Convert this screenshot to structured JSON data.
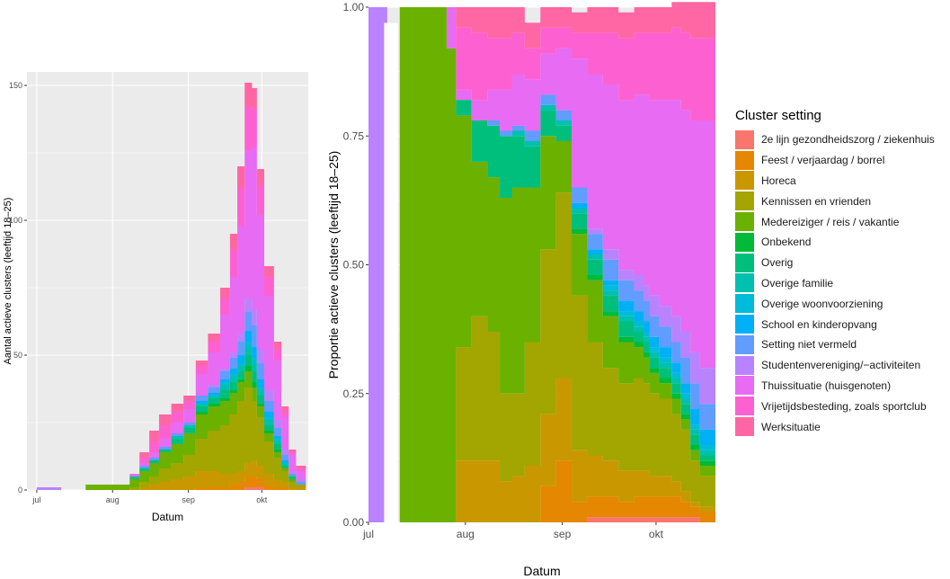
{
  "chart_data": [
    {
      "type": "area",
      "stacked": true,
      "xlabel": "Datum",
      "ylabel": "Aantal actieve clusters (leeftijd 18–25)",
      "x_ticks": [
        "jul",
        "aug",
        "sep",
        "okt"
      ],
      "y_ticks": [
        "0",
        "50",
        "100",
        "150"
      ],
      "ylim": [
        0,
        155
      ],
      "x_days": [
        0,
        10,
        14,
        20,
        25,
        33,
        38,
        42,
        46,
        50,
        55,
        60,
        65,
        70,
        75,
        79,
        82,
        85,
        88,
        90,
        93,
        97,
        100,
        103,
        106
      ],
      "series": [
        {
          "name": "Werksituatie",
          "values": [
            0,
            0,
            0,
            0,
            0,
            0,
            0,
            2,
            4,
            4,
            3,
            2,
            2,
            3,
            4,
            6,
            8,
            9,
            8,
            6,
            4,
            3,
            2,
            1,
            1
          ]
        },
        {
          "name": "Vrijetijdsbesteding, zoals sportclub",
          "values": [
            0,
            0,
            0,
            0,
            0,
            0,
            0,
            2,
            4,
            5,
            4,
            3,
            3,
            4,
            6,
            10,
            14,
            16,
            14,
            11,
            7,
            4,
            2,
            1,
            1
          ]
        },
        {
          "name": "Thuissituatie (huisgenoten)",
          "values": [
            0,
            0,
            0,
            0,
            0,
            0,
            1,
            1,
            2,
            3,
            4,
            5,
            8,
            12,
            20,
            28,
            40,
            55,
            60,
            50,
            35,
            22,
            12,
            6,
            3
          ]
        },
        {
          "name": "Studentenvereniging/−activiteiten",
          "values": [
            1,
            0,
            0,
            0,
            0,
            0,
            0,
            0,
            0,
            0,
            0,
            0,
            0,
            1,
            1,
            2,
            3,
            5,
            6,
            5,
            4,
            3,
            2,
            1,
            1
          ]
        },
        {
          "name": "Setting niet vermeld",
          "values": [
            0,
            0,
            0,
            0,
            0,
            0,
            0,
            1,
            1,
            1,
            1,
            1,
            2,
            2,
            3,
            4,
            5,
            7,
            8,
            6,
            4,
            3,
            2,
            1,
            1
          ]
        },
        {
          "name": "School en kinderopvang",
          "values": [
            0,
            0,
            0,
            0,
            0,
            0,
            0,
            0,
            0,
            0,
            0,
            0,
            1,
            1,
            1,
            2,
            3,
            4,
            4,
            3,
            2,
            1,
            1,
            0,
            0
          ]
        },
        {
          "name": "Overige woonvoorziening",
          "values": [
            0,
            0,
            0,
            0,
            0,
            0,
            0,
            0,
            0,
            0,
            0,
            0,
            0,
            0,
            1,
            1,
            1,
            2,
            2,
            1,
            1,
            1,
            0,
            0,
            0
          ]
        },
        {
          "name": "Overige familie",
          "values": [
            0,
            0,
            0,
            0,
            0,
            0,
            0,
            0,
            0,
            0,
            1,
            1,
            1,
            1,
            2,
            2,
            2,
            3,
            3,
            2,
            2,
            1,
            1,
            0,
            0
          ]
        },
        {
          "name": "Overig",
          "values": [
            0,
            0,
            0,
            0,
            0,
            0,
            1,
            1,
            1,
            1,
            2,
            2,
            2,
            2,
            3,
            3,
            3,
            4,
            4,
            3,
            2,
            2,
            1,
            1,
            0
          ]
        },
        {
          "name": "Onbekend",
          "values": [
            0,
            0,
            0,
            0,
            0,
            0,
            0,
            0,
            0,
            0,
            0,
            0,
            1,
            1,
            1,
            1,
            1,
            2,
            2,
            1,
            1,
            1,
            0,
            0,
            0
          ]
        },
        {
          "name": "Medereiziger / reis / vakantie",
          "values": [
            0,
            0,
            0,
            2,
            2,
            2,
            3,
            4,
            5,
            6,
            7,
            8,
            9,
            9,
            9,
            8,
            7,
            6,
            5,
            4,
            3,
            2,
            1,
            1,
            0
          ]
        },
        {
          "name": "Kennissen en vrienden",
          "values": [
            0,
            0,
            0,
            0,
            0,
            0,
            1,
            2,
            3,
            5,
            6,
            8,
            12,
            15,
            18,
            22,
            26,
            28,
            22,
            18,
            12,
            8,
            4,
            2,
            1
          ]
        },
        {
          "name": "Horeca",
          "values": [
            0,
            0,
            0,
            0,
            0,
            0,
            0,
            1,
            2,
            3,
            4,
            5,
            6,
            6,
            5,
            4,
            4,
            5,
            6,
            5,
            4,
            3,
            2,
            1,
            1
          ]
        },
        {
          "name": "Feest / verjaardag / borrel",
          "values": [
            0,
            0,
            0,
            0,
            0,
            0,
            0,
            0,
            0,
            0,
            0,
            0,
            1,
            1,
            1,
            2,
            3,
            4,
            4,
            3,
            2,
            1,
            1,
            0,
            0
          ]
        },
        {
          "name": "2e lijn gezondheidszorg / ziekenhuis",
          "values": [
            0,
            0,
            0,
            0,
            0,
            0,
            0,
            0,
            0,
            0,
            0,
            0,
            0,
            0,
            0,
            0,
            0,
            1,
            1,
            1,
            0,
            0,
            0,
            0,
            0
          ]
        }
      ]
    },
    {
      "type": "area",
      "stacked": true,
      "xlabel": "Datum",
      "ylabel": "Proportie actieve clusters (leeftijd 18–25)",
      "x_ticks": [
        "jul",
        "aug",
        "sep",
        "okt"
      ],
      "y_ticks": [
        "0.00",
        "0.25",
        "0.50",
        "0.75",
        "1.00"
      ],
      "ylim": [
        0,
        1
      ],
      "x_days": [
        0,
        5,
        6,
        10,
        14,
        20,
        25,
        28,
        33,
        38,
        42,
        46,
        50,
        55,
        60,
        65,
        70,
        75,
        80,
        85,
        88,
        90,
        93,
        97,
        100,
        103,
        106
      ],
      "series": [
        {
          "name": "Werksituatie",
          "values": [
            0,
            0,
            0,
            0,
            0,
            0,
            0,
            0.04,
            0.05,
            0.06,
            0.06,
            0.05,
            0.05,
            0.04,
            0.04,
            0.04,
            0.05,
            0.05,
            0.05,
            0.05,
            0.05,
            0.05,
            0.05,
            0.05,
            0.06,
            0.07,
            0.07
          ]
        },
        {
          "name": "Vrijetijdsbesteding, zoals sportclub",
          "values": [
            0,
            0,
            0,
            0,
            0,
            0,
            0,
            0.12,
            0.13,
            0.1,
            0.1,
            0.08,
            0.06,
            0.05,
            0.04,
            0.05,
            0.08,
            0.1,
            0.12,
            0.12,
            0.12,
            0.13,
            0.13,
            0.14,
            0.15,
            0.16,
            0.16
          ]
        },
        {
          "name": "Thuissituatie (huisgenoten)",
          "values": [
            0,
            0,
            0,
            0,
            0,
            0,
            0.08,
            0.02,
            0.04,
            0.06,
            0.08,
            0.1,
            0.1,
            0.08,
            0.12,
            0.25,
            0.3,
            0.32,
            0.33,
            0.35,
            0.37,
            0.38,
            0.4,
            0.42,
            0.43,
            0.45,
            0.48
          ]
        },
        {
          "name": "Studentenvereniging/−activiteiten",
          "values": [
            1,
            1,
            0,
            0,
            0,
            0,
            0,
            0,
            0,
            0,
            0,
            0,
            0,
            0,
            0,
            0,
            0.01,
            0.02,
            0.02,
            0.03,
            0.03,
            0.04,
            0.04,
            0.05,
            0.05,
            0.06,
            0.07
          ]
        },
        {
          "name": "Setting niet vermeld",
          "values": [
            0,
            0,
            0,
            0,
            0,
            0,
            0,
            0,
            0,
            0.01,
            0.01,
            0.01,
            0.02,
            0.02,
            0.02,
            0.03,
            0.03,
            0.04,
            0.04,
            0.04,
            0.04,
            0.04,
            0.04,
            0.04,
            0.05,
            0.05,
            0.05
          ]
        },
        {
          "name": "School en kinderopvang",
          "values": [
            0,
            0,
            0,
            0,
            0,
            0,
            0,
            0,
            0,
            0,
            0,
            0,
            0,
            0,
            0,
            0.01,
            0.01,
            0.01,
            0.02,
            0.02,
            0.02,
            0.02,
            0.02,
            0.02,
            0.02,
            0.03,
            0.03
          ]
        },
        {
          "name": "Overige woonvoorziening",
          "values": [
            0,
            0,
            0,
            0,
            0,
            0,
            0,
            0,
            0,
            0,
            0,
            0,
            0,
            0,
            0,
            0,
            0,
            0.01,
            0.01,
            0.01,
            0.01,
            0.01,
            0.01,
            0.01,
            0.01,
            0.01,
            0.01
          ]
        },
        {
          "name": "Overige familie",
          "values": [
            0,
            0,
            0,
            0,
            0,
            0,
            0,
            0,
            0,
            0,
            0,
            0.01,
            0.01,
            0.01,
            0.01,
            0.01,
            0.01,
            0.01,
            0.01,
            0.01,
            0.01,
            0.01,
            0.01,
            0.01,
            0.01,
            0.01,
            0.01
          ]
        },
        {
          "name": "Overig",
          "values": [
            0,
            0,
            0,
            0,
            0,
            0,
            0,
            0.03,
            0.08,
            0.1,
            0.12,
            0.1,
            0.08,
            0.05,
            0.03,
            0.03,
            0.03,
            0.03,
            0.03,
            0.02,
            0.02,
            0.02,
            0.02,
            0.02,
            0.02,
            0.02,
            0.01
          ]
        },
        {
          "name": "Onbekend",
          "values": [
            0,
            0,
            0,
            0,
            0,
            0,
            0,
            0,
            0,
            0,
            0,
            0,
            0,
            0,
            0,
            0.01,
            0.01,
            0.01,
            0.01,
            0.01,
            0.01,
            0.01,
            0.01,
            0.01,
            0.01,
            0.01,
            0.01
          ]
        },
        {
          "name": "Medereiziger / reis / vakantie",
          "values": [
            0,
            0,
            0,
            1,
            1,
            1,
            0.92,
            0.45,
            0.3,
            0.3,
            0.38,
            0.4,
            0.3,
            0.22,
            0.1,
            0.12,
            0.12,
            0.1,
            0.08,
            0.06,
            0.05,
            0.04,
            0.03,
            0.03,
            0.02,
            0.02,
            0.02
          ]
        },
        {
          "name": "Kennissen en vrienden",
          "values": [
            0,
            0,
            0,
            0,
            0,
            0,
            0,
            0.22,
            0.28,
            0.25,
            0.17,
            0.16,
            0.24,
            0.32,
            0.36,
            0.3,
            0.22,
            0.18,
            0.17,
            0.18,
            0.17,
            0.16,
            0.15,
            0.13,
            0.12,
            0.08,
            0.06
          ]
        },
        {
          "name": "Horeca",
          "values": [
            0,
            0,
            0,
            0,
            0,
            0,
            0,
            0.12,
            0.12,
            0.12,
            0.08,
            0.09,
            0.11,
            0.14,
            0.16,
            0.1,
            0.08,
            0.07,
            0.06,
            0.05,
            0.05,
            0.04,
            0.04,
            0.03,
            0.02,
            0.01,
            0.01
          ]
        },
        {
          "name": "Feest / verjaardag / borrel",
          "values": [
            0,
            0,
            0,
            0,
            0,
            0,
            0,
            0,
            0,
            0,
            0,
            0,
            0,
            0.07,
            0.12,
            0.04,
            0.04,
            0.04,
            0.03,
            0.04,
            0.04,
            0.04,
            0.04,
            0.04,
            0.03,
            0.02,
            0.02
          ]
        },
        {
          "name": "2e lijn gezondheidszorg / ziekenhuis",
          "values": [
            0,
            0,
            0,
            0,
            0,
            0,
            0,
            0,
            0,
            0,
            0,
            0,
            0,
            0,
            0,
            0,
            0.01,
            0.01,
            0.01,
            0.01,
            0.01,
            0.01,
            0.01,
            0.01,
            0.01,
            0.01,
            0
          ]
        }
      ]
    }
  ],
  "legend": {
    "title": "Cluster setting",
    "items": [
      {
        "label": "2e lijn gezondheidszorg / ziekenhuis",
        "color": "#F8766D"
      },
      {
        "label": "Feest / verjaardag / borrel",
        "color": "#E58700"
      },
      {
        "label": "Horeca",
        "color": "#C99800"
      },
      {
        "label": "Kennissen en vrienden",
        "color": "#A3A500"
      },
      {
        "label": "Medereiziger / reis / vakantie",
        "color": "#6BB100"
      },
      {
        "label": "Onbekend",
        "color": "#00BA38"
      },
      {
        "label": "Overig",
        "color": "#00BF7D"
      },
      {
        "label": "Overige familie",
        "color": "#00C0AF"
      },
      {
        "label": "Overige woonvoorziening",
        "color": "#00BCD8"
      },
      {
        "label": "School en kinderopvang",
        "color": "#00B0F6"
      },
      {
        "label": "Setting niet vermeld",
        "color": "#619CFF"
      },
      {
        "label": "Studentenvereniging/−activiteiten",
        "color": "#B983FF"
      },
      {
        "label": "Thuissituatie (huisgenoten)",
        "color": "#E76BF3"
      },
      {
        "label": "Vrijetijdsbesteding, zoals sportclub",
        "color": "#FD61D1"
      },
      {
        "label": "Werksituatie",
        "color": "#FF67A4"
      }
    ]
  }
}
